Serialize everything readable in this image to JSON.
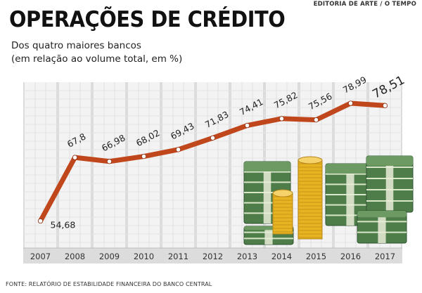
{
  "header": {
    "credit": "EDITORIA DE ARTE / O TEMPO",
    "title": "OPERAÇÕES DE CRÉDITO",
    "subtitle_line1": "Dos quatro maiores bancos",
    "subtitle_line2": "(em relação ao volume total, em %)"
  },
  "footer": {
    "source": "FONTE: RELATÓRIO DE ESTABILIDADE FINANCEIRA DO BANCO CENTRAL"
  },
  "colors": {
    "line": "#c0461b",
    "marker_fill": "#ffffff",
    "grid_band": "#dcdcdc",
    "grid_line": "#bdbdbd",
    "cash_green": "#4f7d4a",
    "coin_gold": "#e6b422"
  },
  "chart_data": {
    "type": "line",
    "title": "",
    "xlabel": "",
    "ylabel": "",
    "x": [
      "2007",
      "2008",
      "2009",
      "2010",
      "2011",
      "2012",
      "2013",
      "2014",
      "2015",
      "2016",
      "2017"
    ],
    "series": [
      {
        "values": [
          54.68,
          67.8,
          66.98,
          68.02,
          69.43,
          71.83,
          74.41,
          75.82,
          75.56,
          78.99,
          78.51
        ],
        "labels": [
          "54,68",
          "67,8",
          "66,98",
          "68,02",
          "69,43",
          "71,83",
          "74,41",
          "75,82",
          "75,56",
          "78,99",
          "78,51"
        ]
      }
    ],
    "grid": true,
    "decoration": "banknote-stacks-and-coin-stacks-illustration"
  }
}
